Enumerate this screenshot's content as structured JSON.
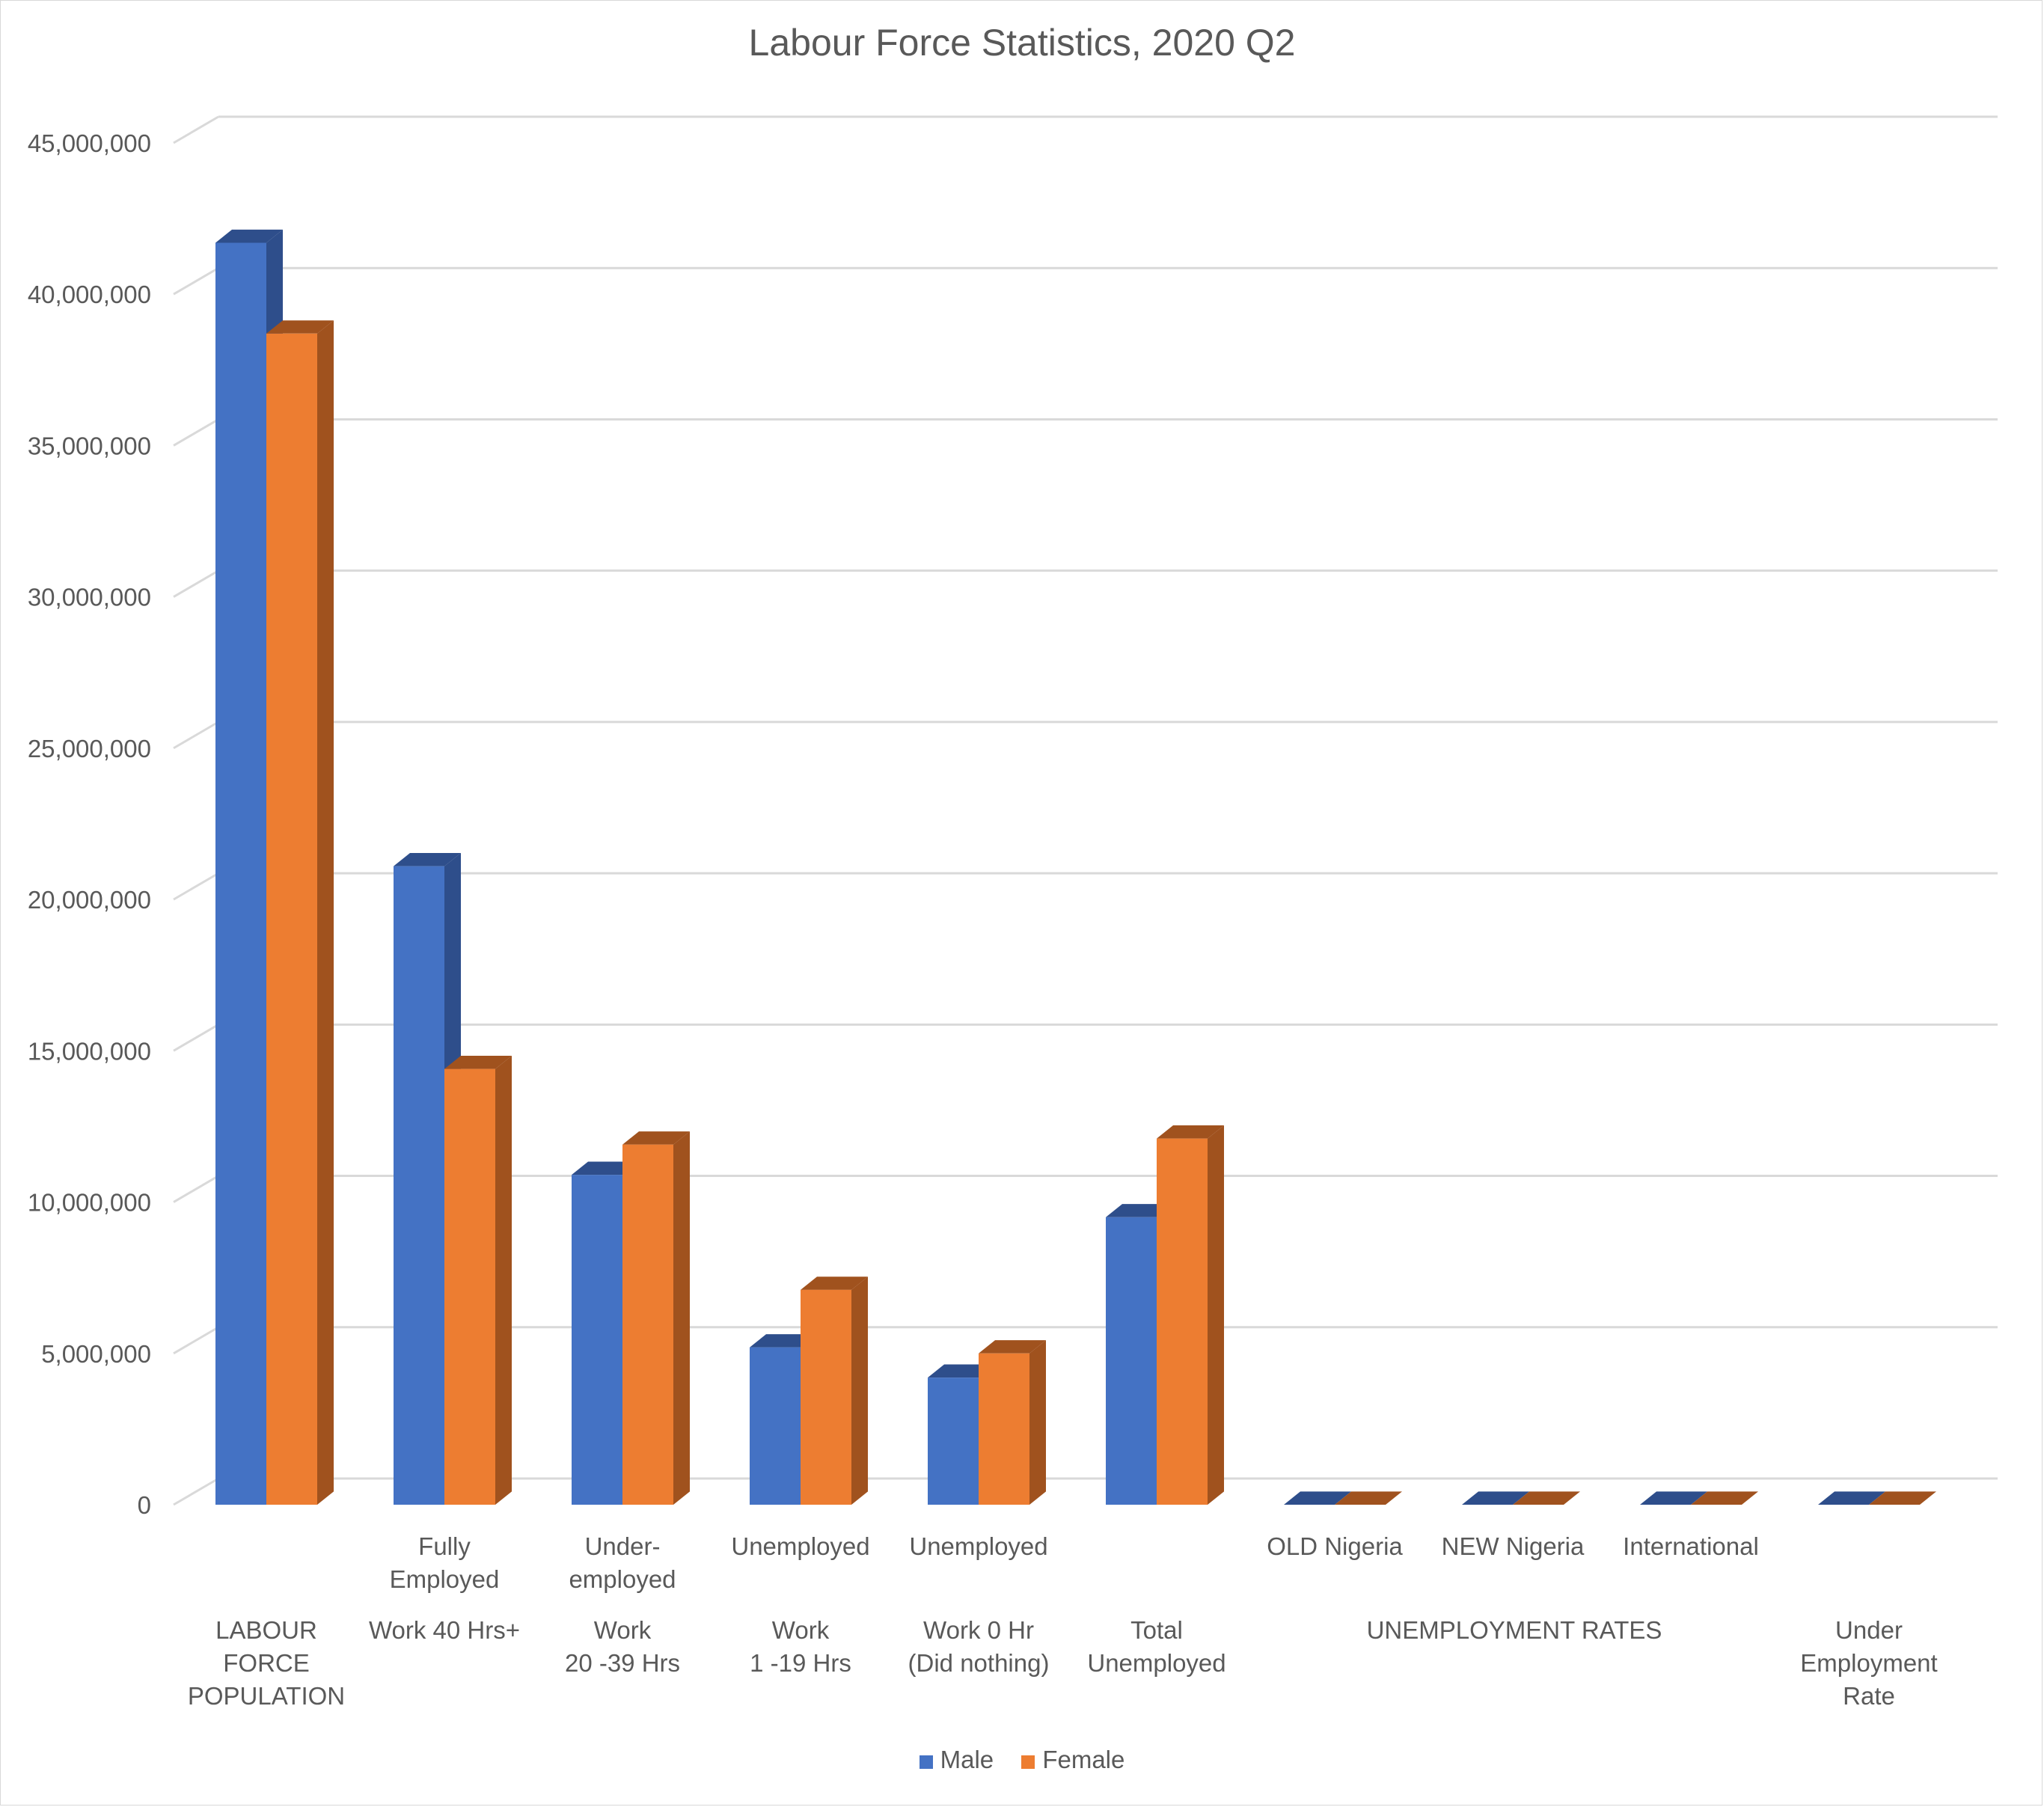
{
  "chart_data": {
    "type": "bar",
    "title": "Labour Force Statistics, 2020 Q2",
    "xlabel": "",
    "ylabel": "",
    "ylim": [
      0,
      45000000
    ],
    "y_ticks": [
      "0",
      "5,000,000",
      "10,000,000",
      "15,000,000",
      "20,000,000",
      "25,000,000",
      "30,000,000",
      "35,000,000",
      "40,000,000",
      "45,000,000"
    ],
    "y_tick_values": [
      0,
      5000000,
      10000000,
      15000000,
      20000000,
      25000000,
      30000000,
      35000000,
      40000000,
      45000000
    ],
    "grid": true,
    "legend_position": "bottom",
    "style": "3d-clustered-column",
    "categories": [
      [
        "LABOUR",
        "FORCE",
        "POPULATION"
      ],
      [
        "Fully",
        "Employed",
        "Work  40 Hrs+"
      ],
      [
        "Under-",
        "employed",
        "Work",
        "20 -39 Hrs"
      ],
      [
        "Unemployed",
        "Work",
        "1 -19 Hrs"
      ],
      [
        "Unemployed",
        "Work 0 Hr",
        "(Did nothing)"
      ],
      [
        "Total",
        "Unemployed"
      ],
      [
        "OLD Nigeria"
      ],
      [
        "NEW Nigeria"
      ],
      [
        "International"
      ],
      [
        "Under",
        "Employment",
        "Rate"
      ]
    ],
    "group_label": "UNEMPLOYMENT RATES",
    "series": [
      {
        "name": "Male",
        "color": "#4472c4",
        "side_color": "#2e4e8b",
        "values": [
          41700000,
          21100000,
          10900000,
          5200000,
          4200000,
          9500000,
          0,
          0,
          0,
          0
        ]
      },
      {
        "name": "Female",
        "color": "#ed7d31",
        "side_color": "#a0521e",
        "values": [
          38700000,
          14400000,
          11900000,
          7100000,
          5000000,
          12100000,
          0,
          0,
          0,
          0
        ]
      }
    ]
  }
}
